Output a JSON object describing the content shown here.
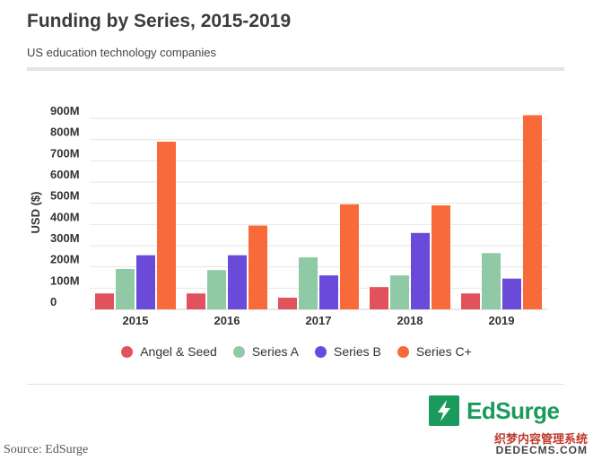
{
  "chart_data": {
    "type": "bar",
    "title": "Funding by Series, 2015-2019",
    "subtitle": "US education technology companies",
    "ylabel": "USD ($)",
    "xlabel": "",
    "categories": [
      "2015",
      "2016",
      "2017",
      "2018",
      "2019"
    ],
    "ylim": [
      0,
      900
    ],
    "yticks": [
      {
        "value": 0,
        "label": "0"
      },
      {
        "value": 100,
        "label": "100M"
      },
      {
        "value": 200,
        "label": "200M"
      },
      {
        "value": 300,
        "label": "300M"
      },
      {
        "value": 400,
        "label": "400M"
      },
      {
        "value": 500,
        "label": "500M"
      },
      {
        "value": 600,
        "label": "600M"
      },
      {
        "value": 700,
        "label": "700M"
      },
      {
        "value": 800,
        "label": "800M"
      },
      {
        "value": 900,
        "label": "900M"
      }
    ],
    "series": [
      {
        "name": "Angel & Seed",
        "color": "#e0525c",
        "values": [
          75,
          75,
          55,
          105,
          75
        ]
      },
      {
        "name": "Series A",
        "color": "#8fc9a6",
        "values": [
          190,
          185,
          245,
          160,
          265
        ]
      },
      {
        "name": "Series B",
        "color": "#6a4ad8",
        "values": [
          255,
          255,
          160,
          360,
          145
        ]
      },
      {
        "name": "Series C+",
        "color": "#f86a3a",
        "values": [
          790,
          395,
          495,
          490,
          915
        ]
      }
    ],
    "grid": true,
    "legend_position": "bottom"
  },
  "branding": {
    "logo_text": "EdSurge",
    "logo_color": "#1a9a5c",
    "source": "Source: EdSurge",
    "watermark_cn": "织梦内容管理系统",
    "watermark_url": "DEDECMS.COM"
  }
}
